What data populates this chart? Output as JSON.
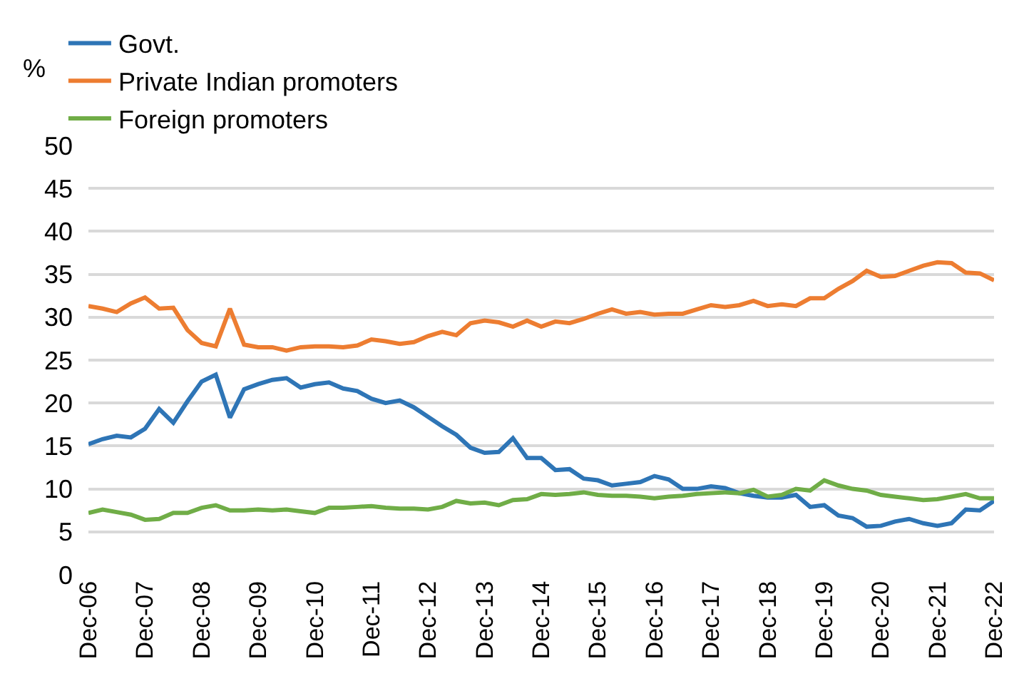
{
  "chart_data": {
    "type": "line",
    "ylabel": "%",
    "categories": [
      "Dec-06",
      null,
      null,
      null,
      "Dec-07",
      null,
      null,
      null,
      "Dec-08",
      null,
      null,
      null,
      "Dec-09",
      null,
      null,
      null,
      "Dec-10",
      null,
      null,
      null,
      "Dec-11",
      null,
      null,
      null,
      "Dec-12",
      null,
      null,
      null,
      "Dec-13",
      null,
      null,
      null,
      "Dec-14",
      null,
      null,
      null,
      "Dec-15",
      null,
      null,
      null,
      "Dec-16",
      null,
      null,
      null,
      "Dec-17",
      null,
      null,
      null,
      "Dec-18",
      null,
      null,
      null,
      "Dec-19",
      null,
      null,
      null,
      "Dec-20",
      null,
      null,
      null,
      "Dec-21",
      null,
      null,
      null,
      "Dec-22"
    ],
    "series": [
      {
        "name": "Govt.",
        "color": "#2e75b6",
        "values": [
          15.2,
          15.8,
          16.2,
          16.0,
          17.0,
          19.3,
          17.7,
          20.2,
          22.5,
          23.3,
          18.3,
          21.6,
          22.2,
          22.7,
          22.9,
          21.8,
          22.2,
          22.4,
          21.7,
          21.4,
          20.5,
          20.0,
          20.3,
          19.5,
          18.4,
          17.3,
          16.3,
          14.8,
          14.2,
          14.3,
          15.9,
          13.6,
          13.6,
          12.2,
          12.3,
          11.2,
          11.0,
          10.4,
          10.6,
          10.8,
          11.5,
          11.1,
          10.0,
          10.0,
          10.3,
          10.1,
          9.5,
          9.2,
          9.0,
          9.0,
          9.3,
          7.9,
          8.1,
          6.9,
          6.6,
          5.6,
          5.7,
          6.2,
          6.5,
          6.0,
          5.7,
          6.0,
          7.6,
          7.5,
          8.6
        ]
      },
      {
        "name": "Private Indian promoters",
        "color": "#ed7d31",
        "values": [
          31.3,
          31.0,
          30.6,
          31.6,
          32.3,
          31.0,
          31.1,
          28.5,
          27.0,
          26.6,
          31.0,
          26.8,
          26.5,
          26.5,
          26.1,
          26.5,
          26.6,
          26.6,
          26.5,
          26.7,
          27.4,
          27.2,
          26.9,
          27.1,
          27.8,
          28.3,
          27.9,
          29.3,
          29.6,
          29.4,
          28.9,
          29.6,
          28.9,
          29.5,
          29.3,
          29.8,
          30.4,
          30.9,
          30.4,
          30.6,
          30.3,
          30.4,
          30.4,
          30.9,
          31.4,
          31.2,
          31.4,
          31.9,
          31.3,
          31.5,
          31.3,
          32.2,
          32.2,
          33.3,
          34.2,
          35.4,
          34.7,
          34.8,
          35.4,
          36.0,
          36.4,
          36.3,
          35.2,
          35.1,
          34.3
        ]
      },
      {
        "name": "Foreign promoters",
        "color": "#70ad47",
        "values": [
          7.2,
          7.6,
          7.3,
          7.0,
          6.4,
          6.5,
          7.2,
          7.2,
          7.8,
          8.1,
          7.5,
          7.5,
          7.6,
          7.5,
          7.6,
          7.4,
          7.2,
          7.8,
          7.8,
          7.9,
          8.0,
          7.8,
          7.7,
          7.7,
          7.6,
          7.9,
          8.6,
          8.3,
          8.4,
          8.1,
          8.7,
          8.8,
          9.4,
          9.3,
          9.4,
          9.6,
          9.3,
          9.2,
          9.2,
          9.1,
          8.9,
          9.1,
          9.2,
          9.4,
          9.5,
          9.6,
          9.5,
          9.9,
          9.1,
          9.3,
          10.0,
          9.8,
          11.0,
          10.4,
          10.0,
          9.8,
          9.3,
          9.1,
          8.9,
          8.7,
          8.8,
          9.1,
          9.4,
          8.9,
          8.9
        ]
      }
    ],
    "ylim": [
      0,
      50
    ],
    "yticks": [
      0,
      5,
      10,
      15,
      20,
      25,
      30,
      35,
      40,
      45,
      50
    ],
    "grid": "y",
    "legend": "top",
    "marker": "none",
    "line_style": "solid"
  }
}
